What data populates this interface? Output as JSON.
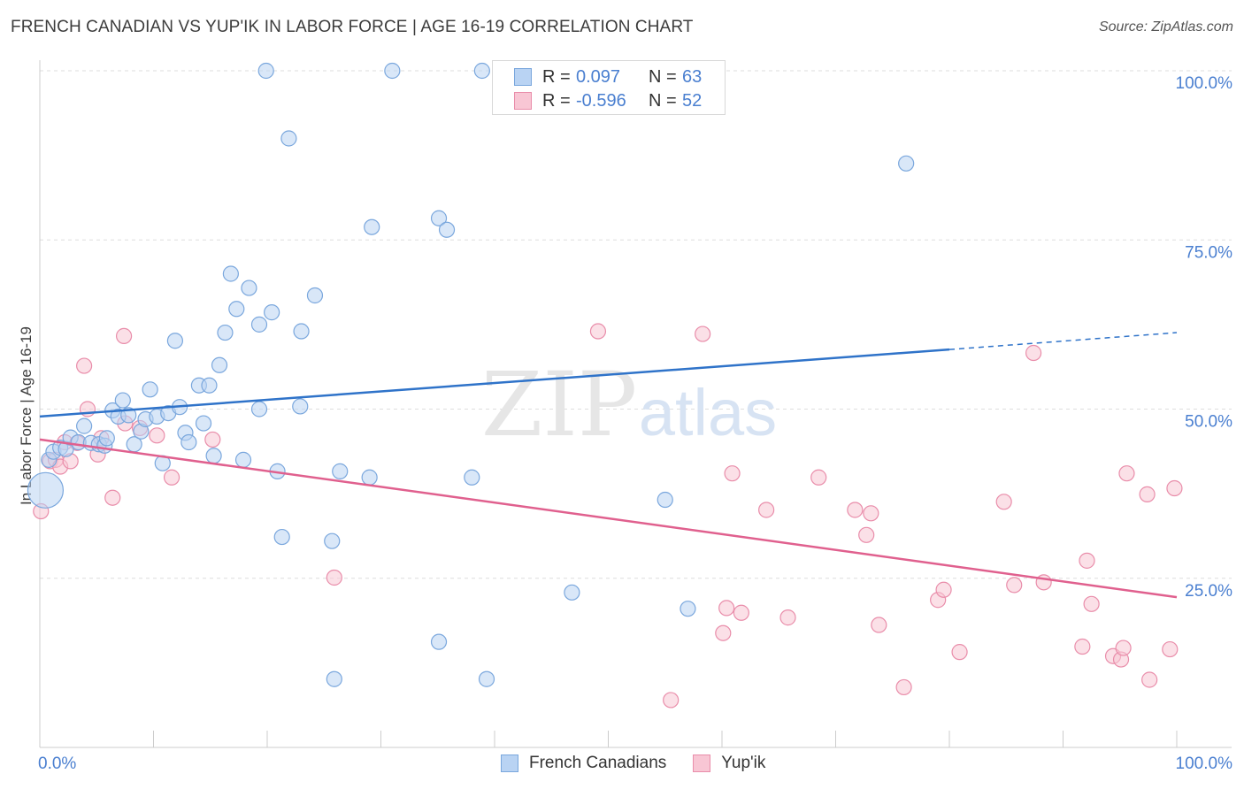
{
  "title": "FRENCH CANADIAN VS YUP'IK IN LABOR FORCE | AGE 16-19 CORRELATION CHART",
  "source": "Source: ZipAtlas.com",
  "colors": {
    "blue_fill": "#b9d3f3",
    "blue_stroke": "#7aa7dd",
    "blue_line": "#2f73c9",
    "pink_fill": "#f8c6d4",
    "pink_stroke": "#e98daa",
    "pink_line": "#e0608e",
    "axis_text": "#4a7fd0"
  },
  "legend_top": {
    "rows": [
      {
        "r_label": "R =",
        "r_value": "0.097",
        "n_label": "N =",
        "n_value": "63"
      },
      {
        "r_label": "R =",
        "r_value": "-0.596",
        "n_label": "N =",
        "n_value": "52"
      }
    ]
  },
  "chart_data": {
    "type": "scatter",
    "title": "FRENCH CANADIAN VS YUP'IK IN LABOR FORCE | AGE 16-19 CORRELATION CHART",
    "xlabel": "",
    "ylabel": "In Labor Force | Age 16-19",
    "xlim": [
      0,
      100
    ],
    "ylim": [
      0,
      102
    ],
    "x_tick_labels": [
      "0.0%",
      "100.0%"
    ],
    "y_tick_labels": [
      "25.0%",
      "50.0%",
      "75.0%",
      "100.0%"
    ],
    "y_ticks": [
      25,
      50,
      75,
      100
    ],
    "grid": true,
    "watermark": "ZIPatlas",
    "series": [
      {
        "name": "French Canadians",
        "trend": {
          "x0": 0,
          "y0": 48.9,
          "x1": 80,
          "y1": 58.8,
          "dashed_to_x": 100,
          "dashed_to_y": 61.3
        },
        "points": [
          [
            0.5,
            38,
            "L"
          ],
          [
            0.8,
            42.5
          ],
          [
            1.2,
            43.7
          ],
          [
            1.8,
            44.3
          ],
          [
            2.3,
            44.1
          ],
          [
            2.7,
            45.8
          ],
          [
            3.4,
            45.1
          ],
          [
            3.9,
            47.5
          ],
          [
            4.5,
            45
          ],
          [
            5.2,
            44.8
          ],
          [
            5.7,
            44.6
          ],
          [
            5.9,
            45.7
          ],
          [
            6.4,
            49.8
          ],
          [
            6.9,
            48.9
          ],
          [
            7.3,
            51.3
          ],
          [
            7.8,
            49.1
          ],
          [
            8.3,
            44.8
          ],
          [
            8.9,
            46.7
          ],
          [
            9.3,
            48.5
          ],
          [
            9.7,
            52.9
          ],
          [
            10.3,
            48.9
          ],
          [
            10.8,
            42
          ],
          [
            11.3,
            49.4
          ],
          [
            11.9,
            60.1
          ],
          [
            12.3,
            50.3
          ],
          [
            12.8,
            46.5
          ],
          [
            13.1,
            45.1
          ],
          [
            14.0,
            53.5
          ],
          [
            14.4,
            47.9
          ],
          [
            14.9,
            53.5
          ],
          [
            15.3,
            43.1
          ],
          [
            15.8,
            56.5
          ],
          [
            16.3,
            61.3
          ],
          [
            16.8,
            70
          ],
          [
            17.3,
            64.8
          ],
          [
            17.9,
            42.5
          ],
          [
            18.4,
            67.9
          ],
          [
            19.3,
            50
          ],
          [
            19.3,
            62.5
          ],
          [
            19.9,
            100
          ],
          [
            20.4,
            64.3
          ],
          [
            20.9,
            40.8
          ],
          [
            21.3,
            31.1
          ],
          [
            21.9,
            90
          ],
          [
            22.9,
            50.4
          ],
          [
            23.0,
            61.5
          ],
          [
            24.2,
            66.8
          ],
          [
            25.7,
            30.5
          ],
          [
            25.9,
            10.1
          ],
          [
            26.4,
            40.8
          ],
          [
            29.0,
            39.9
          ],
          [
            29.2,
            76.9
          ],
          [
            31.0,
            100
          ],
          [
            35.1,
            78.2
          ],
          [
            35.1,
            15.6
          ],
          [
            35.8,
            76.5
          ],
          [
            38.0,
            39.9
          ],
          [
            39.3,
            10.1
          ],
          [
            38.9,
            100
          ],
          [
            46.8,
            22.9
          ],
          [
            55.0,
            36.6
          ],
          [
            57.0,
            20.5
          ],
          [
            76.2,
            86.3
          ]
        ]
      },
      {
        "name": "Yup'ik",
        "trend": {
          "x0": 0,
          "y0": 45.5,
          "x1": 100,
          "y1": 22.2
        },
        "points": [
          [
            0.1,
            34.9
          ],
          [
            0.9,
            42.3
          ],
          [
            1.4,
            42.5
          ],
          [
            1.8,
            41.5
          ],
          [
            2.2,
            45.1
          ],
          [
            2.7,
            42.3
          ],
          [
            3.3,
            45
          ],
          [
            3.9,
            56.4
          ],
          [
            4.2,
            50
          ],
          [
            5.1,
            43.3
          ],
          [
            5.4,
            45.7
          ],
          [
            6.4,
            36.9
          ],
          [
            7.4,
            60.8
          ],
          [
            7.5,
            47.9
          ],
          [
            8.8,
            47.2
          ],
          [
            10.3,
            46.1
          ],
          [
            11.6,
            39.9
          ],
          [
            15.2,
            45.5
          ],
          [
            25.9,
            25.1
          ],
          [
            49.1,
            61.5
          ],
          [
            55.5,
            7
          ],
          [
            58.3,
            61.1
          ],
          [
            60.1,
            16.9
          ],
          [
            60.4,
            20.6
          ],
          [
            60.9,
            40.5
          ],
          [
            61.7,
            19.9
          ],
          [
            63.9,
            35.1
          ],
          [
            65.8,
            19.2
          ],
          [
            68.5,
            39.9
          ],
          [
            71.7,
            35.1
          ],
          [
            72.7,
            31.4
          ],
          [
            73.1,
            34.6
          ],
          [
            73.8,
            18.1
          ],
          [
            76.0,
            8.9
          ],
          [
            79.0,
            21.8
          ],
          [
            79.5,
            23.3
          ],
          [
            80.9,
            14.1
          ],
          [
            84.8,
            36.3
          ],
          [
            85.7,
            24
          ],
          [
            87.4,
            58.3
          ],
          [
            88.3,
            24.4
          ],
          [
            91.7,
            14.9
          ],
          [
            92.1,
            27.6
          ],
          [
            92.5,
            21.2
          ],
          [
            94.4,
            13.5
          ],
          [
            95.1,
            13
          ],
          [
            95.3,
            14.7
          ],
          [
            95.6,
            40.5
          ],
          [
            97.4,
            37.4
          ],
          [
            97.6,
            10
          ],
          [
            99.4,
            14.5
          ],
          [
            99.8,
            38.3
          ]
        ]
      }
    ]
  },
  "legend_bottom": [
    "French Canadians",
    "Yup'ik"
  ]
}
